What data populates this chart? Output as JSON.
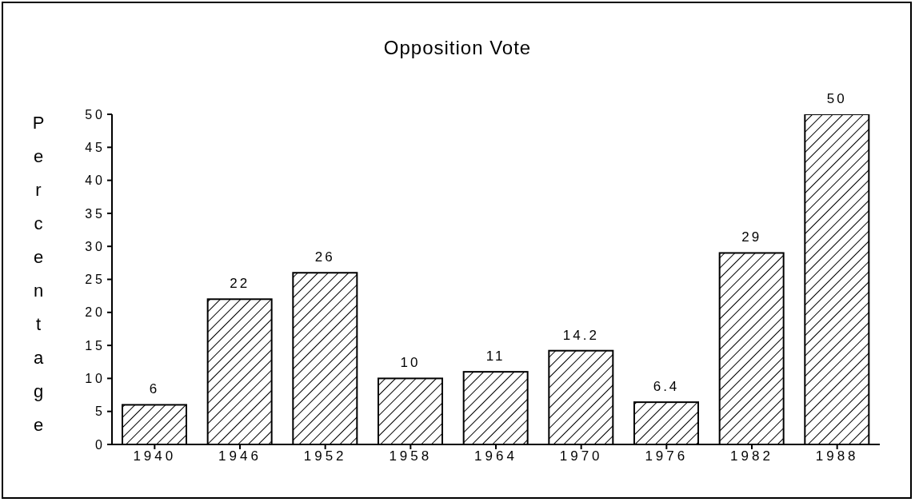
{
  "chart_data": {
    "type": "bar",
    "title": "Opposition Vote",
    "ylabel": "Percentage",
    "categories": [
      "1940",
      "1946",
      "1952",
      "1958",
      "1964",
      "1970",
      "1976",
      "1982",
      "1988"
    ],
    "values": [
      6,
      22,
      26,
      10,
      11,
      14.2,
      6.4,
      29,
      50
    ],
    "color": "#000000",
    "ylim": [
      0,
      50
    ],
    "yticks": [
      0,
      5,
      10,
      15,
      20,
      25,
      30,
      35,
      40,
      45,
      50
    ],
    "data_labels": true
  }
}
